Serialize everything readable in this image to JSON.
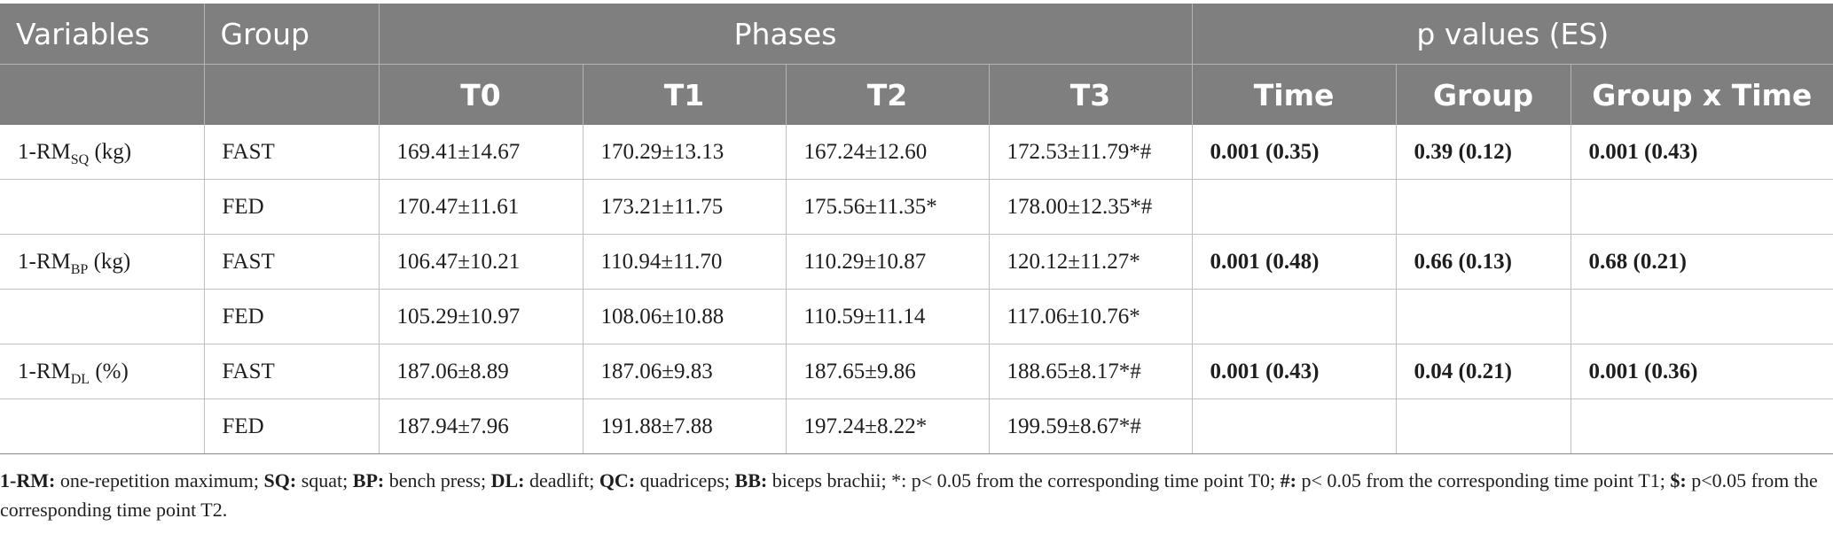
{
  "table": {
    "header1": {
      "variables": "Variables",
      "group": "Group",
      "phases": "Phases",
      "pvalues": "p values (ES)"
    },
    "header2": [
      "T0",
      "T1",
      "T2",
      "T3",
      "Time",
      "Group",
      "Group x Time"
    ],
    "rows": [
      {
        "var_base": "1-RM",
        "var_sub": "SQ",
        "var_unit": " (kg)",
        "group": "FAST",
        "t0": "169.41±14.67",
        "t1": "170.29±13.13",
        "t2": "167.24±12.60",
        "t3": "172.53±11.79*#",
        "time": "0.001 (0.35)",
        "grp": "0.39 (0.12)",
        "gxt": "0.001 (0.43)"
      },
      {
        "var_base": "",
        "var_sub": "",
        "var_unit": "",
        "group": "FED",
        "t0": "170.47±11.61",
        "t1": "173.21±11.75",
        "t2": "175.56±11.35*",
        "t3": "178.00±12.35*#",
        "time": "",
        "grp": "",
        "gxt": ""
      },
      {
        "var_base": "1-RM",
        "var_sub": "BP",
        "var_unit": " (kg)",
        "group": "FAST",
        "t0": "106.47±10.21",
        "t1": "110.94±11.70",
        "t2": "110.29±10.87",
        "t3": "120.12±11.27*",
        "time": "0.001 (0.48)",
        "grp": "0.66 (0.13)",
        "gxt": "0.68 (0.21)"
      },
      {
        "var_base": "",
        "var_sub": "",
        "var_unit": "",
        "group": "FED",
        "t0": "105.29±10.97",
        "t1": "108.06±10.88",
        "t2": "110.59±11.14",
        "t3": "117.06±10.76*",
        "time": "",
        "grp": "",
        "gxt": ""
      },
      {
        "var_base": "1-RM",
        "var_sub": "DL",
        "var_unit": " (%)",
        "group": "FAST",
        "t0": "187.06±8.89",
        "t1": "187.06±9.83",
        "t2": "187.65±9.86",
        "t3": "188.65±8.17*#",
        "time": "0.001 (0.43)",
        "grp": "0.04 (0.21)",
        "gxt": "0.001 (0.36)"
      },
      {
        "var_base": "",
        "var_sub": "",
        "var_unit": "",
        "group": "FED",
        "t0": "187.94±7.96",
        "t1": "191.88±7.88",
        "t2": "197.24±8.22*",
        "t3": "199.59±8.67*#",
        "time": "",
        "grp": "",
        "gxt": ""
      }
    ]
  },
  "footnote": {
    "items": [
      {
        "term": "1-RM:",
        "text": " one-repetition maximum; "
      },
      {
        "term": "SQ:",
        "text": " squat; "
      },
      {
        "term": "BP:",
        "text": " bench press; "
      },
      {
        "term": "DL:",
        "text": " deadlift; "
      },
      {
        "term": "QC:",
        "text": " quadriceps; "
      },
      {
        "term": "BB:",
        "text": " biceps brachii; "
      },
      {
        "term": "",
        "text": "*: p< 0.05 from the corresponding time point T0; "
      },
      {
        "term": "#:",
        "text": " p< 0.05 from the corresponding time point T1; "
      },
      {
        "term": "$:",
        "text": " p<0.05 from the corresponding time point T2."
      }
    ]
  }
}
